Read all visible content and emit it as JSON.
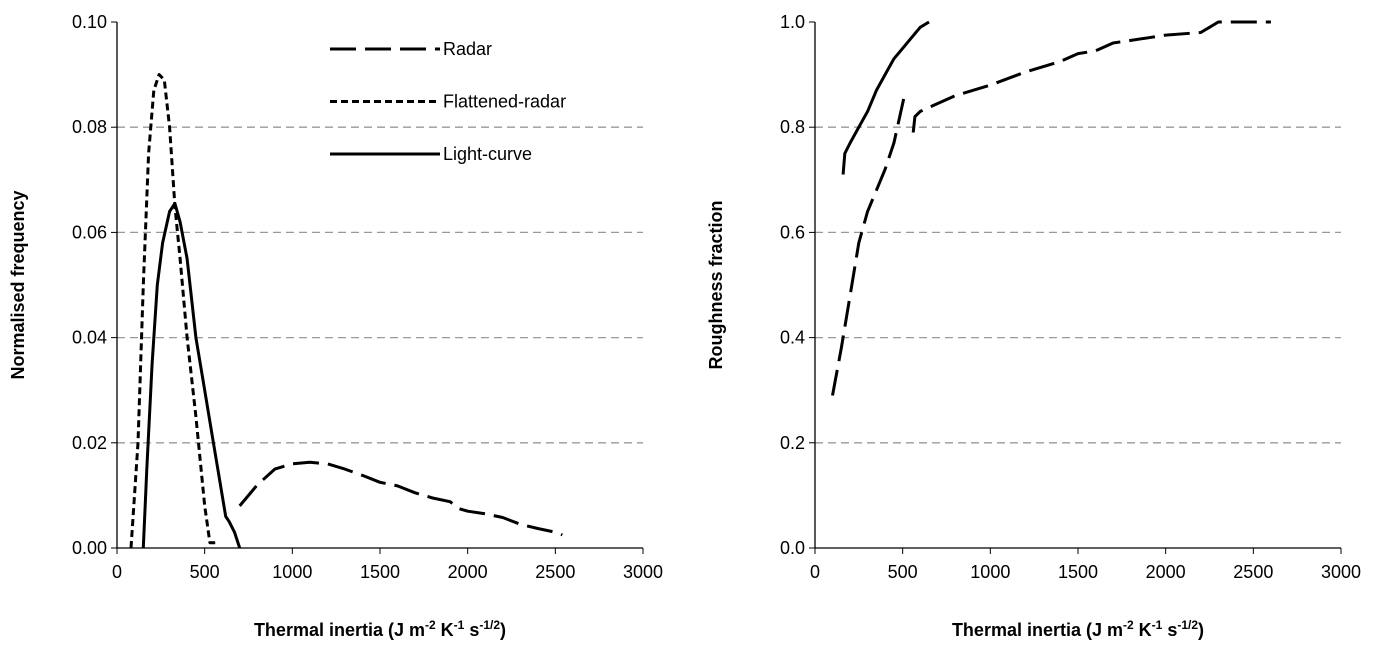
{
  "chart_data": [
    {
      "type": "line",
      "y_label": "Normalised frequency",
      "x_label": [
        "Thermal inertia (J m",
        "-2",
        " K",
        "-1",
        " s",
        "-1/2",
        ")"
      ],
      "xlim": [
        0,
        3000
      ],
      "xticks": [
        0,
        500,
        1000,
        1500,
        2000,
        2500,
        3000
      ],
      "ylim": [
        0,
        0.1
      ],
      "yticks": [
        {
          "value": 0,
          "label": "0.00"
        },
        0.02,
        0.04,
        0.06,
        0.08,
        {
          "value": 0.1,
          "label": "0.10"
        }
      ],
      "grid": true,
      "legend": "top-right",
      "series": [
        {
          "name": "Radar",
          "color": "#000000",
          "dash": "long",
          "x": [
            700,
            800,
            900,
            1000,
            1100,
            1200,
            1300,
            1400,
            1500,
            1600,
            1700,
            1800,
            1900,
            1950,
            2000,
            2100,
            2200,
            2300,
            2400,
            2500,
            2540
          ],
          "values": [
            0.008,
            0.012,
            0.015,
            0.016,
            0.0163,
            0.016,
            0.015,
            0.0138,
            0.0125,
            0.0118,
            0.0105,
            0.0095,
            0.0088,
            0.0075,
            0.007,
            0.0065,
            0.0058,
            0.0045,
            0.0037,
            0.003,
            0.0025
          ]
        },
        {
          "name": "Flattened-radar",
          "color": "#000000",
          "dash": "short",
          "x": [
            80,
            120,
            150,
            180,
            210,
            240,
            270,
            300,
            330,
            360,
            400,
            450,
            500,
            530,
            560
          ],
          "values": [
            0,
            0.02,
            0.05,
            0.075,
            0.087,
            0.09,
            0.089,
            0.08,
            0.065,
            0.055,
            0.04,
            0.025,
            0.008,
            0.001,
            0.001
          ]
        },
        {
          "name": "Light-curve",
          "color": "#000000",
          "dash": "solid",
          "x": [
            150,
            170,
            200,
            230,
            260,
            300,
            330,
            360,
            400,
            450,
            500,
            550,
            580,
            620,
            640,
            670,
            700
          ],
          "values": [
            0,
            0.015,
            0.035,
            0.05,
            0.058,
            0.064,
            0.0655,
            0.062,
            0.055,
            0.04,
            0.03,
            0.02,
            0.014,
            0.006,
            0.005,
            0.003,
            0
          ]
        }
      ]
    },
    {
      "type": "line",
      "y_label": "Roughness fraction",
      "x_label": [
        "Thermal inertia (J m",
        "-2",
        " K",
        "-1",
        " s",
        "-1/2",
        ")"
      ],
      "xlim": [
        0,
        3000
      ],
      "xticks": [
        0,
        500,
        1000,
        1500,
        2000,
        2500,
        3000
      ],
      "ylim": [
        0,
        1
      ],
      "yticks": [
        {
          "value": 0,
          "label": "0.0"
        },
        0.2,
        0.4,
        0.6,
        0.8,
        {
          "value": 1,
          "label": "1.0"
        }
      ],
      "grid": true,
      "series": [
        {
          "color": "#000000",
          "dash": "long",
          "x": [
            100,
            150,
            200,
            250,
            300,
            350,
            400,
            450,
            510,
            535,
            560,
            570,
            600,
            700,
            800,
            1000,
            1200,
            1400,
            1500,
            1600,
            1700,
            1900,
            2000,
            2200,
            2250,
            2300,
            2600
          ],
          "values": [
            0.29,
            0.38,
            0.48,
            0.58,
            0.64,
            0.68,
            0.72,
            0.77,
            0.86,
            null,
            0.79,
            0.82,
            0.83,
            0.845,
            0.86,
            0.88,
            0.905,
            0.925,
            0.94,
            0.945,
            0.96,
            0.97,
            0.975,
            0.98,
            0.99,
            1.0,
            1.0
          ]
        },
        {
          "color": "#000000",
          "dash": "solid",
          "x": [
            160,
            170,
            200,
            250,
            300,
            350,
            400,
            450,
            500,
            550,
            600,
            650
          ],
          "values": [
            0.71,
            0.75,
            0.77,
            0.8,
            0.83,
            0.87,
            0.9,
            0.93,
            0.95,
            0.97,
            0.99,
            1.0
          ]
        }
      ]
    }
  ]
}
